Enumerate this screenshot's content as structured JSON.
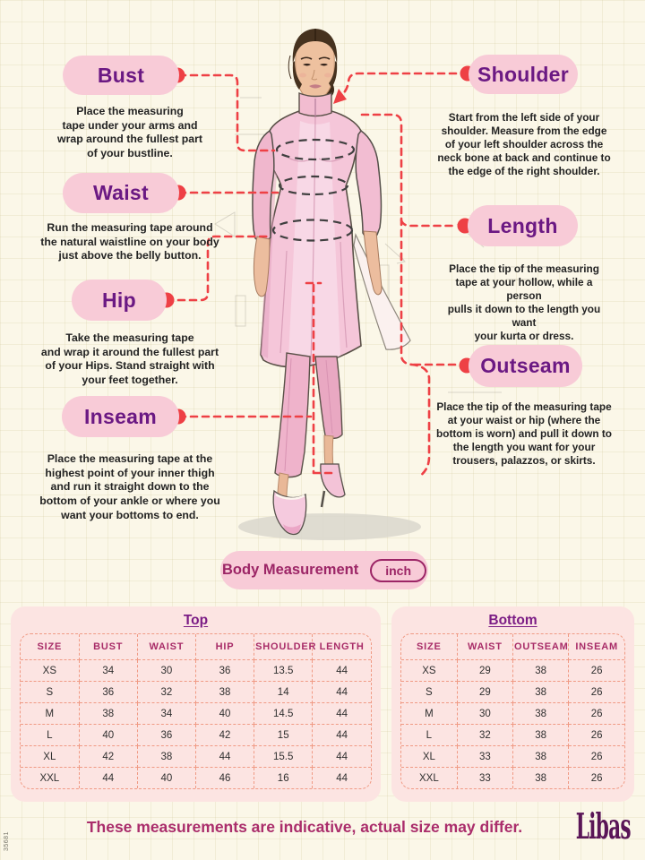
{
  "labels": {
    "bust": {
      "label": "Bust",
      "desc": "Place the measuring\ntape under your arms and\nwrap around the fullest part\nof your bustline."
    },
    "waist": {
      "label": "Waist",
      "desc": "Run the measuring tape around\nthe natural waistline on your body\njust above the belly button."
    },
    "hip": {
      "label": "Hip",
      "desc": "Take the measuring tape\nand wrap it around the fullest part\nof your Hips. Stand straight with\nyour feet together."
    },
    "inseam": {
      "label": "Inseam",
      "desc": "Place the measuring tape at the\nhighest point of your inner thigh\nand run it straight down to the\nbottom of your ankle or where you\nwant your bottoms to end."
    },
    "shoulder": {
      "label": "Shoulder",
      "desc": "Start from the left side of your\nshoulder. Measure from the edge\nof your left shoulder across the\nneck bone at back and continue to\nthe edge of the right shoulder."
    },
    "length": {
      "label": "Length",
      "desc": "Place the tip of the measuring\ntape at your hollow, while a person\npulls it down to the length you want\nyour kurta or dress."
    },
    "outseam": {
      "label": "Outseam",
      "desc": "Place the tip of the measuring tape\nat your waist or hip (where the\nbottom is worn) and pull it down to\nthe length you want for your\ntrousers, palazzos, or skirts."
    }
  },
  "unit_bar": {
    "title": "Body Measurement",
    "unit": "inch"
  },
  "tables": {
    "top": {
      "title": "Top",
      "headers": [
        "SIZE",
        "BUST",
        "WAIST",
        "HIP",
        "SHOULDER",
        "LENGTH"
      ],
      "rows": [
        [
          "XS",
          "34",
          "30",
          "36",
          "13.5",
          "44"
        ],
        [
          "S",
          "36",
          "32",
          "38",
          "14",
          "44"
        ],
        [
          "M",
          "38",
          "34",
          "40",
          "14.5",
          "44"
        ],
        [
          "L",
          "40",
          "36",
          "42",
          "15",
          "44"
        ],
        [
          "XL",
          "42",
          "38",
          "44",
          "15.5",
          "44"
        ],
        [
          "XXL",
          "44",
          "40",
          "46",
          "16",
          "44"
        ]
      ]
    },
    "bottom": {
      "title": "Bottom",
      "headers": [
        "SIZE",
        "WAIST",
        "OUTSEAM",
        "INSEAM"
      ],
      "rows": [
        [
          "XS",
          "29",
          "38",
          "26"
        ],
        [
          "S",
          "29",
          "38",
          "26"
        ],
        [
          "M",
          "30",
          "38",
          "26"
        ],
        [
          "L",
          "32",
          "38",
          "26"
        ],
        [
          "XL",
          "33",
          "38",
          "26"
        ],
        [
          "XXL",
          "33",
          "38",
          "26"
        ]
      ]
    }
  },
  "footer": {
    "note": "These measurements are indicative, actual size may differ.",
    "brand": "Libas",
    "side_code": "35681"
  },
  "colors": {
    "pill_pink": "#f8cbd7",
    "label_purple": "#6b1983",
    "accent_red": "#ee4045",
    "table_pink": "#fce4e2",
    "table_dash": "#f09a84",
    "header_magenta": "#a82c68",
    "footer_magenta": "#aa2d6b",
    "brand_purple": "#5a1557"
  }
}
